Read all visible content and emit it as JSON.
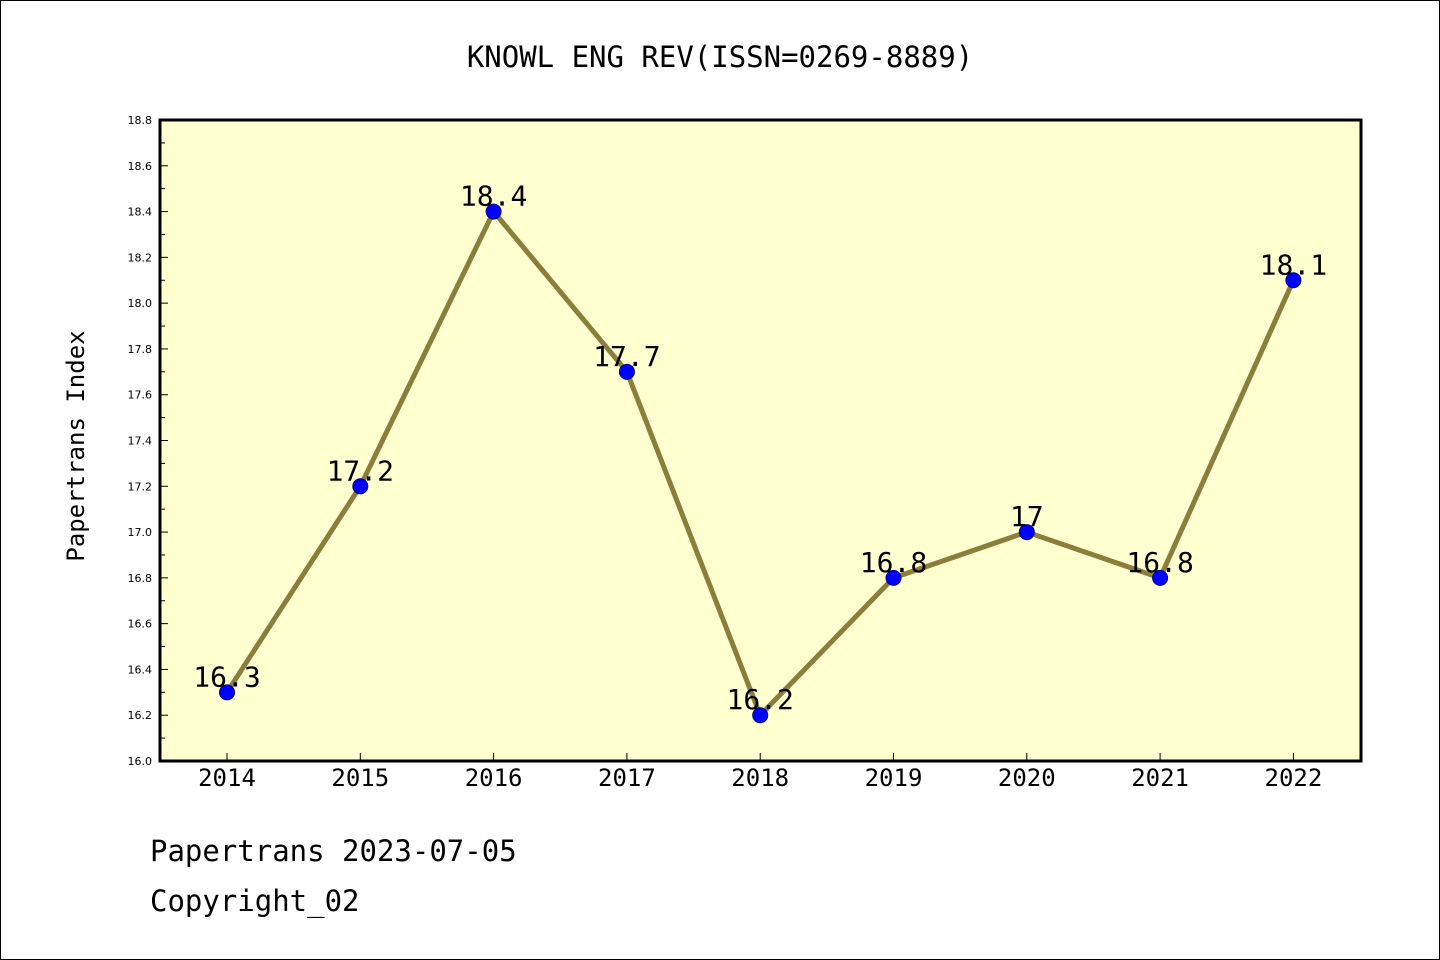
{
  "chart_data": {
    "type": "line",
    "title": "KNOWL ENG REV(ISSN=0269-8889)",
    "xlabel": "",
    "ylabel": "Papertrans Index",
    "categories": [
      "2014",
      "2015",
      "2016",
      "2017",
      "2018",
      "2019",
      "2020",
      "2021",
      "2022"
    ],
    "values": [
      16.3,
      17.2,
      18.4,
      17.7,
      16.2,
      16.8,
      17.0,
      16.8,
      18.1
    ],
    "data_labels": [
      "16.3",
      "17.2",
      "18.4",
      "17.7",
      "16.2",
      "16.8",
      "17",
      "16.8",
      "18.1"
    ],
    "ylim": [
      16.0,
      18.8
    ],
    "yticks": [
      "16.0",
      "16.2",
      "16.4",
      "16.6",
      "16.8",
      "17.0",
      "17.2",
      "17.4",
      "17.6",
      "17.8",
      "18.0",
      "18.2",
      "18.4",
      "18.6",
      "18.8"
    ],
    "grid": false,
    "colors": {
      "plot_background": "#ffffd0",
      "line": "#8b7d3a",
      "marker": "#0000ff"
    }
  },
  "footer": {
    "line1": "Papertrans 2023-07-05",
    "line2": "Copyright_02"
  }
}
